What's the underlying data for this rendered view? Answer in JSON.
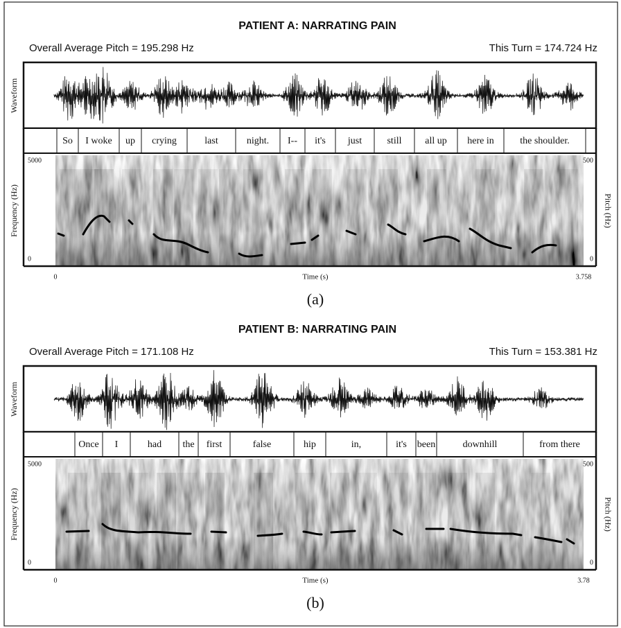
{
  "panels": [
    {
      "title": "PATIENT A: NARRATING PAIN",
      "average_pitch": "Overall Average Pitch = 195.298 Hz",
      "this_turn": "This Turn = 174.724 Hz",
      "waveform_label": "Waveform",
      "words": [
        "So",
        "I woke",
        "up",
        "crying",
        "last",
        "night.",
        "I--",
        "it's",
        "just",
        "still",
        "all up",
        "here in",
        "the shoulder."
      ],
      "frequency_label": "Frequency  (Hz)",
      "pitch_label": "Pitch (Hz)",
      "frequency_ticks": [
        "5000",
        "0"
      ],
      "pitch_ticks": [
        "500",
        "0"
      ],
      "time_label": "Time (s)",
      "time_ticks": [
        "0",
        "3.758"
      ],
      "caption": "(a)"
    },
    {
      "title": "PATIENT B: NARRATING PAIN",
      "average_pitch": "Overall Average Pitch = 171.108 Hz",
      "this_turn": "This Turn = 153.381 Hz",
      "waveform_label": "Waveform",
      "words": [
        "Once",
        "I",
        "had",
        "the",
        "first",
        "false",
        "hip",
        "in,",
        "it's",
        "been",
        "downhill",
        "from there"
      ],
      "frequency_label": "Frequency  (Hz)",
      "pitch_label": "Pitch (Hz)",
      "frequency_ticks": [
        "5000",
        "0"
      ],
      "pitch_ticks": [
        "500",
        "0"
      ],
      "time_label": "Time (s)",
      "time_ticks": [
        "0",
        "3.78"
      ],
      "caption": "(b)"
    }
  ]
}
